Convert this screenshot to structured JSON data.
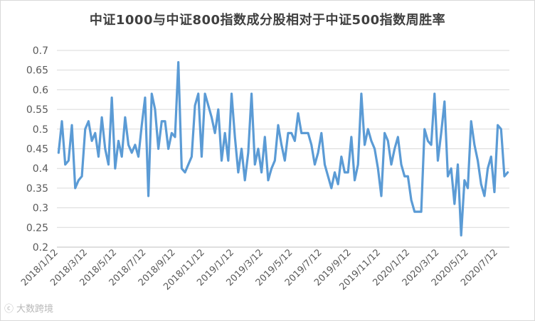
{
  "chart_data": {
    "type": "line",
    "title": "中证1000与中证800指数成分股相对于中证500指数周胜率",
    "xlabel": "",
    "ylabel": "",
    "ylim": [
      0.2,
      0.7
    ],
    "y_ticks": [
      "0.7",
      "0.65",
      "0.6",
      "0.55",
      "0.5",
      "0.45",
      "0.4",
      "0.35",
      "0.3",
      "0.25",
      "0.2"
    ],
    "x_tick_labels": [
      "2018/1/12",
      "2018/3/12",
      "2018/5/12",
      "2018/7/12",
      "2018/9/12",
      "2018/11/12",
      "2019/1/12",
      "2019/3/12",
      "2019/5/12",
      "2019/7/12",
      "2019/9/12",
      "2019/11/12",
      "2020/1/12",
      "2020/3/12",
      "2020/5/12",
      "2020/7/12"
    ],
    "grid": true,
    "line_color": "#5b9bd5",
    "series": [
      {
        "values": [
          0.44,
          0.52,
          0.41,
          0.42,
          0.51,
          0.35,
          0.37,
          0.38,
          0.5,
          0.52,
          0.47,
          0.49,
          0.43,
          0.53,
          0.45,
          0.41,
          0.58,
          0.4,
          0.47,
          0.43,
          0.53,
          0.46,
          0.44,
          0.46,
          0.43,
          0.51,
          0.58,
          0.33,
          0.59,
          0.55,
          0.45,
          0.52,
          0.52,
          0.45,
          0.49,
          0.48,
          0.67,
          0.4,
          0.39,
          0.41,
          0.43,
          0.56,
          0.59,
          0.43,
          0.59,
          0.56,
          0.53,
          0.49,
          0.55,
          0.42,
          0.49,
          0.42,
          0.59,
          0.48,
          0.39,
          0.45,
          0.37,
          0.44,
          0.59,
          0.41,
          0.45,
          0.39,
          0.48,
          0.37,
          0.4,
          0.42,
          0.51,
          0.46,
          0.42,
          0.49,
          0.49,
          0.47,
          0.54,
          0.49,
          0.49,
          0.49,
          0.46,
          0.41,
          0.44,
          0.49,
          0.41,
          0.38,
          0.35,
          0.39,
          0.36,
          0.43,
          0.39,
          0.39,
          0.48,
          0.37,
          0.41,
          0.59,
          0.46,
          0.5,
          0.47,
          0.45,
          0.4,
          0.33,
          0.49,
          0.47,
          0.41,
          0.45,
          0.48,
          0.41,
          0.38,
          0.38,
          0.32,
          0.29,
          0.29,
          0.29,
          0.5,
          0.47,
          0.46,
          0.59,
          0.42,
          0.49,
          0.57,
          0.38,
          0.4,
          0.31,
          0.41,
          0.23,
          0.37,
          0.35,
          0.52,
          0.46,
          0.42,
          0.36,
          0.33,
          0.4,
          0.43,
          0.34,
          0.51,
          0.5,
          0.38,
          0.39
        ]
      }
    ]
  },
  "watermark": {
    "glyph": "ⓒ",
    "text": "大数跨境"
  }
}
